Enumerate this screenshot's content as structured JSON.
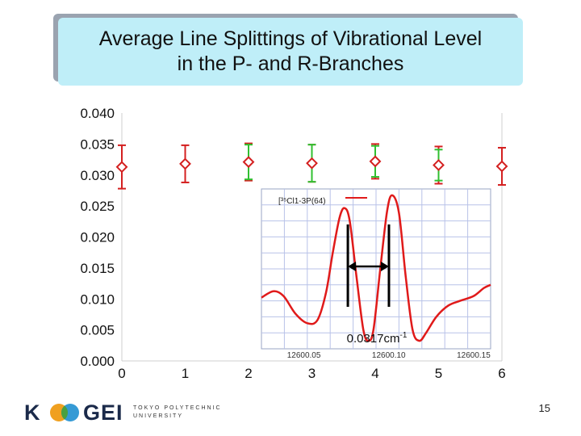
{
  "title": {
    "line1": "Average Line Splittings of Vibrational Level",
    "line2": "in the P- and R-Branches"
  },
  "chart_data": {
    "type": "scatter",
    "x_ticks": [
      "0",
      "1",
      "2",
      "3",
      "4",
      "5",
      "6"
    ],
    "y_ticks": [
      "0.000",
      "0.005",
      "0.010",
      "0.015",
      "0.020",
      "0.025",
      "0.030",
      "0.035",
      "0.040"
    ],
    "xlim": [
      0,
      6
    ],
    "ylim": [
      0,
      0.04
    ],
    "series": [
      {
        "name": "red",
        "color": "#d42020",
        "points": [
          {
            "x": 0,
            "y": 0.0313,
            "err_low": 0.0035,
            "err_high": 0.0035
          },
          {
            "x": 1,
            "y": 0.0318,
            "err_low": 0.003,
            "err_high": 0.003
          },
          {
            "x": 2,
            "y": 0.0321,
            "err_low": 0.003,
            "err_high": 0.003
          },
          {
            "x": 3,
            "y": 0.0319,
            "err_low": 0.003,
            "err_high": 0.003
          },
          {
            "x": 4,
            "y": 0.0322,
            "err_low": 0.0028,
            "err_high": 0.0028
          },
          {
            "x": 5,
            "y": 0.0316,
            "err_low": 0.003,
            "err_high": 0.003
          },
          {
            "x": 6,
            "y": 0.0314,
            "err_low": 0.003,
            "err_high": 0.003
          }
        ]
      },
      {
        "name": "green",
        "color": "#30c030",
        "points": [
          {
            "x": 2,
            "y": 0.0321,
            "err_low": 0.0028,
            "err_high": 0.0028
          },
          {
            "x": 3,
            "y": 0.0319,
            "err_low": 0.003,
            "err_high": 0.003
          },
          {
            "x": 4,
            "y": 0.0322,
            "err_low": 0.0025,
            "err_high": 0.0025
          },
          {
            "x": 5,
            "y": 0.0316,
            "err_low": 0.0025,
            "err_high": 0.0025
          }
        ]
      }
    ],
    "inset": {
      "type": "line",
      "legend": "[³⁵Cl1-3P(64)",
      "x_ticks": [
        "12600.05",
        "12600.10",
        "12600.15"
      ],
      "xlim": [
        12600.025,
        12600.16
      ],
      "line_color": "#e01a1a",
      "points": [
        [
          12600.025,
          0.32
        ],
        [
          12600.032,
          0.36
        ],
        [
          12600.038,
          0.33
        ],
        [
          12600.045,
          0.22
        ],
        [
          12600.052,
          0.16
        ],
        [
          12600.058,
          0.18
        ],
        [
          12600.063,
          0.35
        ],
        [
          12600.067,
          0.6
        ],
        [
          12600.071,
          0.82
        ],
        [
          12600.074,
          0.88
        ],
        [
          12600.077,
          0.8
        ],
        [
          12600.081,
          0.45
        ],
        [
          12600.085,
          0.12
        ],
        [
          12600.088,
          0.05
        ],
        [
          12600.091,
          0.12
        ],
        [
          12600.095,
          0.5
        ],
        [
          12600.099,
          0.86
        ],
        [
          12600.102,
          0.96
        ],
        [
          12600.106,
          0.85
        ],
        [
          12600.11,
          0.45
        ],
        [
          12600.114,
          0.12
        ],
        [
          12600.118,
          0.05
        ],
        [
          12600.122,
          0.1
        ],
        [
          12600.128,
          0.2
        ],
        [
          12600.135,
          0.27
        ],
        [
          12600.142,
          0.3
        ],
        [
          12600.15,
          0.33
        ],
        [
          12600.156,
          0.38
        ],
        [
          12600.16,
          0.4
        ]
      ],
      "annotation": "0.0317cm",
      "annotation_sup": "-1"
    }
  },
  "footer": {
    "logo_text_left": "K",
    "logo_text_right": "GEI",
    "logo_sub_1": "TOKYO POLYTECHNIC",
    "logo_sub_2": "UNIVERSITY",
    "page": "15"
  }
}
